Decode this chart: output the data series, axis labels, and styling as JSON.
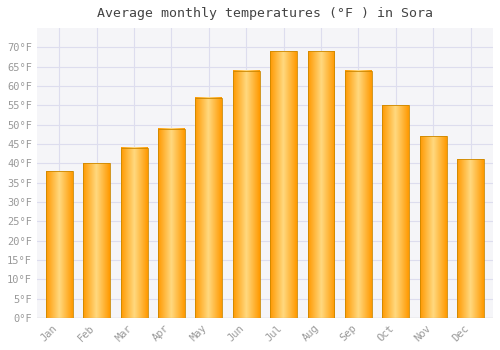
{
  "title": "Average monthly temperatures (°F ) in Sora",
  "months": [
    "Jan",
    "Feb",
    "Mar",
    "Apr",
    "May",
    "Jun",
    "Jul",
    "Aug",
    "Sep",
    "Oct",
    "Nov",
    "Dec"
  ],
  "values": [
    38,
    40,
    44,
    49,
    57,
    64,
    69,
    69,
    64,
    55,
    47,
    41
  ],
  "bar_color_main": "#FFA500",
  "bar_color_light": "#FFD580",
  "bar_edge_color": "#CC8800",
  "background_color": "#FFFFFF",
  "plot_bg_color": "#F5F5F8",
  "grid_color": "#DDDDEE",
  "ylim": [
    0,
    75
  ],
  "yticks": [
    0,
    5,
    10,
    15,
    20,
    25,
    30,
    35,
    40,
    45,
    50,
    55,
    60,
    65,
    70
  ],
  "title_fontsize": 9.5,
  "tick_fontsize": 7.5,
  "tick_color": "#999999",
  "font_family": "monospace"
}
